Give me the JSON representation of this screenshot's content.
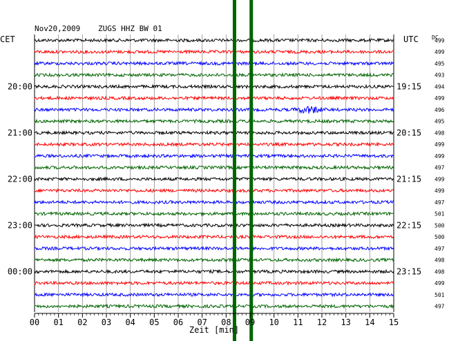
{
  "header": {
    "date": "Nov20,2009",
    "station": "ZUGS HHZ BW 01",
    "left_tz": "CET",
    "right_tz": "UTC",
    "dc_label": "DC"
  },
  "chart_data": {
    "type": "line",
    "title": "Nov20,2009   ZUGS HHZ BW 01",
    "xlabel": "Zeit [min]",
    "ylabel": "",
    "xlim": [
      0,
      15
    ],
    "x_ticks": [
      "00",
      "01",
      "02",
      "03",
      "04",
      "05",
      "06",
      "07",
      "08",
      "09",
      "10",
      "11",
      "12",
      "13",
      "14",
      "15"
    ],
    "grid": true,
    "trace_colors": [
      "#000000",
      "#ff0000",
      "#0000ff",
      "#006400"
    ],
    "left_time_labels": [
      {
        "row": 4,
        "label": "20:00"
      },
      {
        "row": 8,
        "label": "21:00"
      },
      {
        "row": 12,
        "label": "22:00"
      },
      {
        "row": 16,
        "label": "23:00"
      },
      {
        "row": 20,
        "label": "00:00"
      }
    ],
    "right_time_labels": [
      {
        "row": 4,
        "label": "19:15"
      },
      {
        "row": 8,
        "label": "20:15"
      },
      {
        "row": 12,
        "label": "21:15"
      },
      {
        "row": 16,
        "label": "22:15"
      },
      {
        "row": 20,
        "label": "23:15"
      }
    ],
    "dc_values": [
      "499",
      "499",
      "495",
      "493",
      "494",
      "499",
      "496",
      "495",
      "498",
      "499",
      "499",
      "497",
      "499",
      "499",
      "497",
      "501",
      "500",
      "500",
      "497",
      "498",
      "498",
      "499",
      "501",
      "497"
    ],
    "events": [
      {
        "row": 6,
        "x_start": 10.75,
        "x_end": 12.2,
        "description": "small burst"
      }
    ],
    "disturbances": [
      {
        "x": 8.35,
        "color": "#006400"
      },
      {
        "x": 9.05,
        "color": "#006400"
      }
    ]
  }
}
